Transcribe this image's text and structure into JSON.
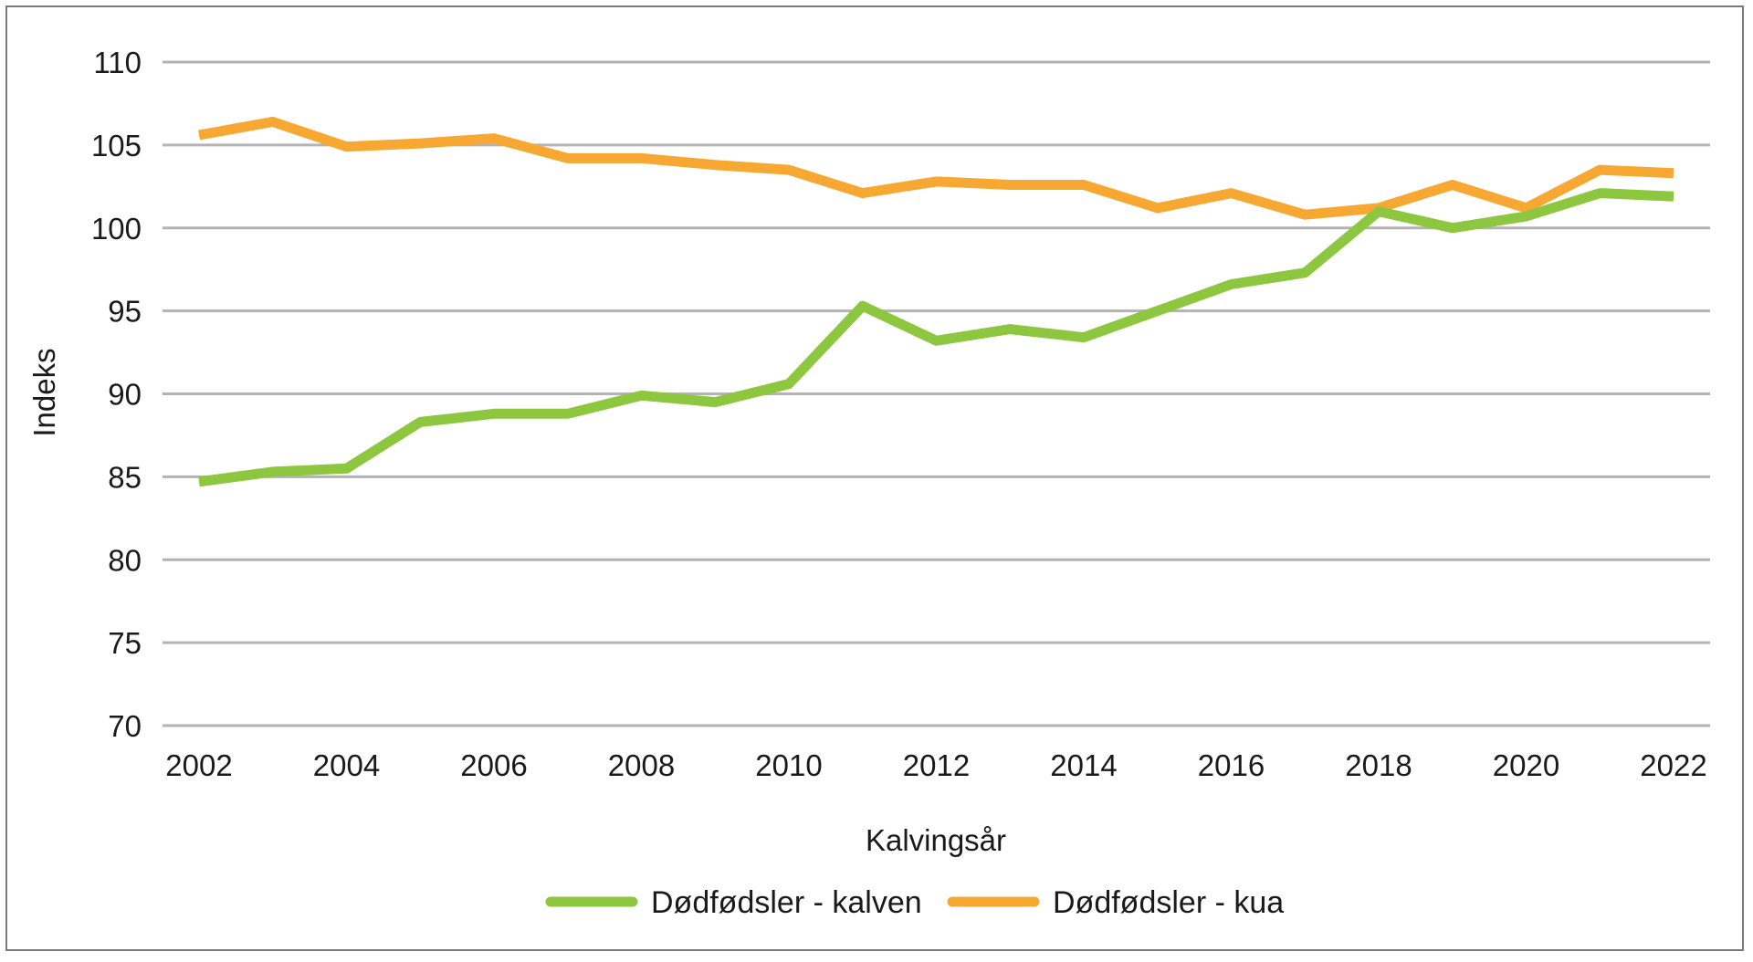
{
  "chart_data": {
    "type": "line",
    "title": "",
    "xlabel": "Kalvingsår",
    "ylabel": "Indeks",
    "ylim": [
      70,
      110
    ],
    "yticks": [
      70,
      75,
      80,
      85,
      90,
      95,
      100,
      105,
      110
    ],
    "xticks": [
      2002,
      2004,
      2006,
      2008,
      2010,
      2012,
      2014,
      2016,
      2018,
      2020,
      2022
    ],
    "x": [
      2002,
      2003,
      2004,
      2005,
      2006,
      2007,
      2008,
      2009,
      2010,
      2011,
      2012,
      2013,
      2014,
      2015,
      2016,
      2017,
      2018,
      2019,
      2020,
      2021,
      2022
    ],
    "grid": true,
    "legend_position": "bottom",
    "series": [
      {
        "name": "Dødfødsler - kalven",
        "color": "#8dc63f",
        "values": [
          84.7,
          85.3,
          85.5,
          88.3,
          88.8,
          88.8,
          89.9,
          89.5,
          90.6,
          95.3,
          93.2,
          93.9,
          93.4,
          95.0,
          96.6,
          97.3,
          101.0,
          100.0,
          100.7,
          102.1,
          101.9
        ]
      },
      {
        "name": "Dødfødsler - kua",
        "color": "#f7a833",
        "values": [
          105.6,
          106.4,
          104.9,
          105.1,
          105.4,
          104.2,
          104.2,
          103.8,
          103.5,
          102.1,
          102.8,
          102.6,
          102.6,
          101.2,
          102.1,
          100.8,
          101.2,
          102.6,
          101.2,
          103.5,
          103.3
        ]
      }
    ]
  }
}
